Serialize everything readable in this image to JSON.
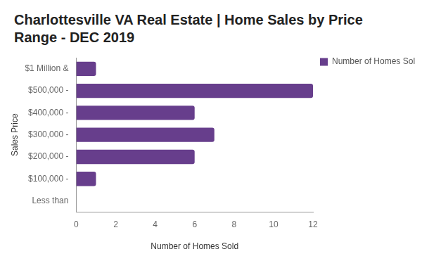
{
  "chart_data": {
    "type": "bar",
    "orientation": "horizontal",
    "title": "Charlottesville VA Real Estate | Home Sales by Price Range - DEC 2019",
    "x_label": "Number of Homes Sold",
    "y_label": "Sales Price",
    "categories": [
      "$1 Million &",
      "$500,000 -",
      "$400,000 -",
      "$300,000 -",
      "$200,000 -",
      "$100,000 -",
      "Less than"
    ],
    "series": [
      {
        "name": "Number of Homes Sold",
        "color": "#673e8c",
        "values": [
          1,
          12,
          6,
          7,
          6,
          1,
          0
        ]
      }
    ],
    "xlim": [
      0,
      12
    ],
    "xticks": [
      0,
      2,
      4,
      6,
      8,
      10,
      12
    ],
    "grid": false,
    "legend": "right"
  }
}
